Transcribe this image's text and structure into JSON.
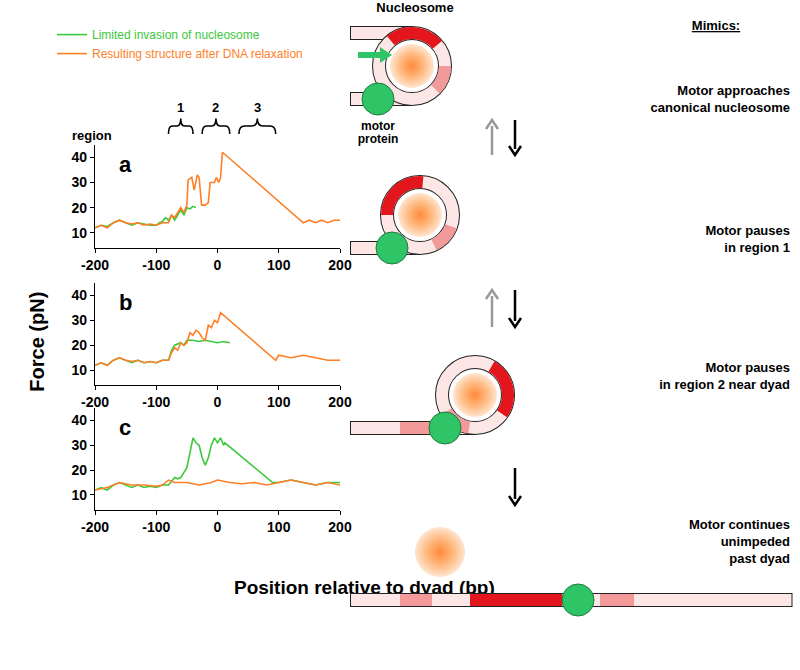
{
  "chart_data": [
    {
      "type": "line",
      "title": "a",
      "xlim": [
        -200,
        200
      ],
      "xticks": [
        -200,
        -100,
        0,
        100,
        200
      ],
      "ylim": [
        4,
        45
      ],
      "yticks": [
        10,
        20,
        30,
        40
      ],
      "grid": false,
      "series": [
        {
          "name": "Limited invasion of nucleosome",
          "color": "#3cc83c",
          "x": [
            -200,
            -190,
            -180,
            -170,
            -160,
            -150,
            -140,
            -130,
            -120,
            -110,
            -100,
            -95,
            -90,
            -85,
            -80,
            -75,
            -70,
            -65,
            -60,
            -55,
            -50,
            -45,
            -40,
            -35
          ],
          "values": [
            12,
            13,
            12.5,
            14,
            15,
            14,
            13,
            14,
            13.5,
            13,
            13,
            14,
            14.5,
            16,
            15,
            17,
            15,
            17,
            19,
            17,
            20,
            19.5,
            20.5,
            20
          ]
        },
        {
          "name": "Resulting structure after DNA relaxation",
          "color": "#ff7f27",
          "x": [
            -200,
            -190,
            -180,
            -170,
            -160,
            -150,
            -140,
            -130,
            -120,
            -110,
            -100,
            -90,
            -80,
            -75,
            -70,
            -65,
            -60,
            -55,
            -50,
            -48,
            -42,
            -38,
            -33,
            -30,
            -26,
            -20,
            -15,
            -12,
            -5,
            -2,
            2,
            5,
            8,
            140,
            150,
            160,
            170,
            180,
            190,
            200
          ],
          "values": [
            12,
            13,
            12,
            14,
            15,
            14,
            13.5,
            14,
            13,
            13.5,
            13,
            14,
            14,
            17,
            16,
            18,
            20,
            18,
            21,
            31,
            32,
            27,
            33,
            32,
            21,
            21,
            22,
            30,
            30,
            32,
            30,
            32,
            42,
            14,
            15,
            14,
            15,
            14,
            15,
            15
          ]
        }
      ]
    },
    {
      "type": "line",
      "title": "b",
      "xlim": [
        -200,
        200
      ],
      "xticks": [
        -200,
        -100,
        0,
        100,
        200
      ],
      "ylim": [
        4,
        45
      ],
      "yticks": [
        10,
        20,
        30,
        40
      ],
      "grid": false,
      "series": [
        {
          "name": "Limited invasion of nucleosome",
          "color": "#3cc83c",
          "x": [
            -200,
            -190,
            -180,
            -170,
            -160,
            -150,
            -140,
            -130,
            -120,
            -110,
            -100,
            -90,
            -80,
            -75,
            -70,
            -60,
            -55,
            -50,
            -40,
            -30,
            -20,
            -10,
            0,
            10,
            20
          ],
          "values": [
            12,
            13,
            12,
            14,
            15,
            14,
            13,
            14,
            13,
            13.5,
            13,
            14,
            14,
            18,
            20,
            21,
            20,
            22,
            22,
            21.5,
            22,
            21.5,
            21,
            21.5,
            21
          ]
        },
        {
          "name": "Resulting structure after DNA relaxation",
          "color": "#ff7f27",
          "x": [
            -200,
            -190,
            -180,
            -170,
            -160,
            -150,
            -140,
            -130,
            -120,
            -110,
            -100,
            -90,
            -80,
            -75,
            -70,
            -65,
            -60,
            -55,
            -50,
            -45,
            -40,
            -35,
            -30,
            -25,
            -20,
            -15,
            -10,
            -5,
            0,
            5,
            95,
            100,
            120,
            140,
            160,
            180,
            200
          ],
          "values": [
            12,
            13,
            12,
            14,
            15,
            14,
            13.5,
            14,
            13,
            13.5,
            13,
            14,
            14,
            17,
            19,
            18,
            21,
            20,
            21,
            25,
            24,
            26,
            25,
            23,
            22,
            28,
            27,
            30,
            29,
            33,
            14,
            16,
            15,
            16,
            15,
            14,
            14
          ]
        }
      ]
    },
    {
      "type": "line",
      "title": "c",
      "xlim": [
        -200,
        200
      ],
      "xticks": [
        -200,
        -100,
        0,
        100,
        200
      ],
      "ylim": [
        4,
        45
      ],
      "yticks": [
        10,
        20,
        30,
        40
      ],
      "grid": false,
      "series": [
        {
          "name": "Limited invasion of nucleosome",
          "color": "#3cc83c",
          "x": [
            -200,
            -190,
            -180,
            -170,
            -160,
            -150,
            -140,
            -130,
            -120,
            -110,
            -100,
            -90,
            -80,
            -70,
            -65,
            -60,
            -50,
            -45,
            -40,
            -35,
            -30,
            -25,
            -20,
            -15,
            -10,
            -5,
            0,
            5,
            10,
            12,
            90,
            100,
            120,
            140,
            160,
            180,
            200
          ],
          "values": [
            12,
            13,
            12,
            14,
            15,
            14,
            13,
            14,
            13,
            13.5,
            13,
            14,
            14,
            17,
            16.5,
            17,
            21,
            27,
            33,
            31,
            30,
            25,
            22,
            25,
            30,
            33,
            31,
            33,
            30,
            31,
            15,
            15,
            16,
            15,
            14,
            15,
            15
          ]
        },
        {
          "name": "Resulting structure after DNA relaxation",
          "color": "#ff7f27",
          "x": [
            -200,
            -180,
            -160,
            -140,
            -120,
            -100,
            -90,
            -80,
            -70,
            -50,
            -30,
            -10,
            0,
            20,
            40,
            60,
            80,
            100,
            120,
            140,
            160,
            180,
            200
          ],
          "values": [
            12,
            13,
            15,
            14,
            14,
            13.5,
            14,
            16,
            15,
            15,
            14,
            15,
            16,
            15,
            14.5,
            15,
            14,
            15,
            16,
            15,
            14,
            15,
            14
          ]
        }
      ]
    }
  ],
  "axis_titles": {
    "x": "Position relative to dyad (bp)",
    "y": "Force (pN)"
  },
  "regions": {
    "label": "region",
    "spans": [
      {
        "label": "1",
        "from": -80,
        "to": -40
      },
      {
        "label": "2",
        "from": -25,
        "to": 20
      },
      {
        "label": "3",
        "from": 35,
        "to": 95
      }
    ]
  },
  "diagram": {
    "nucleosome": "Nucleosome",
    "motor": [
      "motor",
      "protein"
    ],
    "mimics": "Mimics:",
    "steps": [
      [
        "Motor approaches",
        "canonical nucleosome"
      ],
      [
        "Motor pauses",
        "in region 1"
      ],
      [
        "Motor pauses",
        "in region 2 near dyad"
      ],
      [
        "Motor continues",
        "unimpeded",
        "past dyad"
      ]
    ]
  }
}
